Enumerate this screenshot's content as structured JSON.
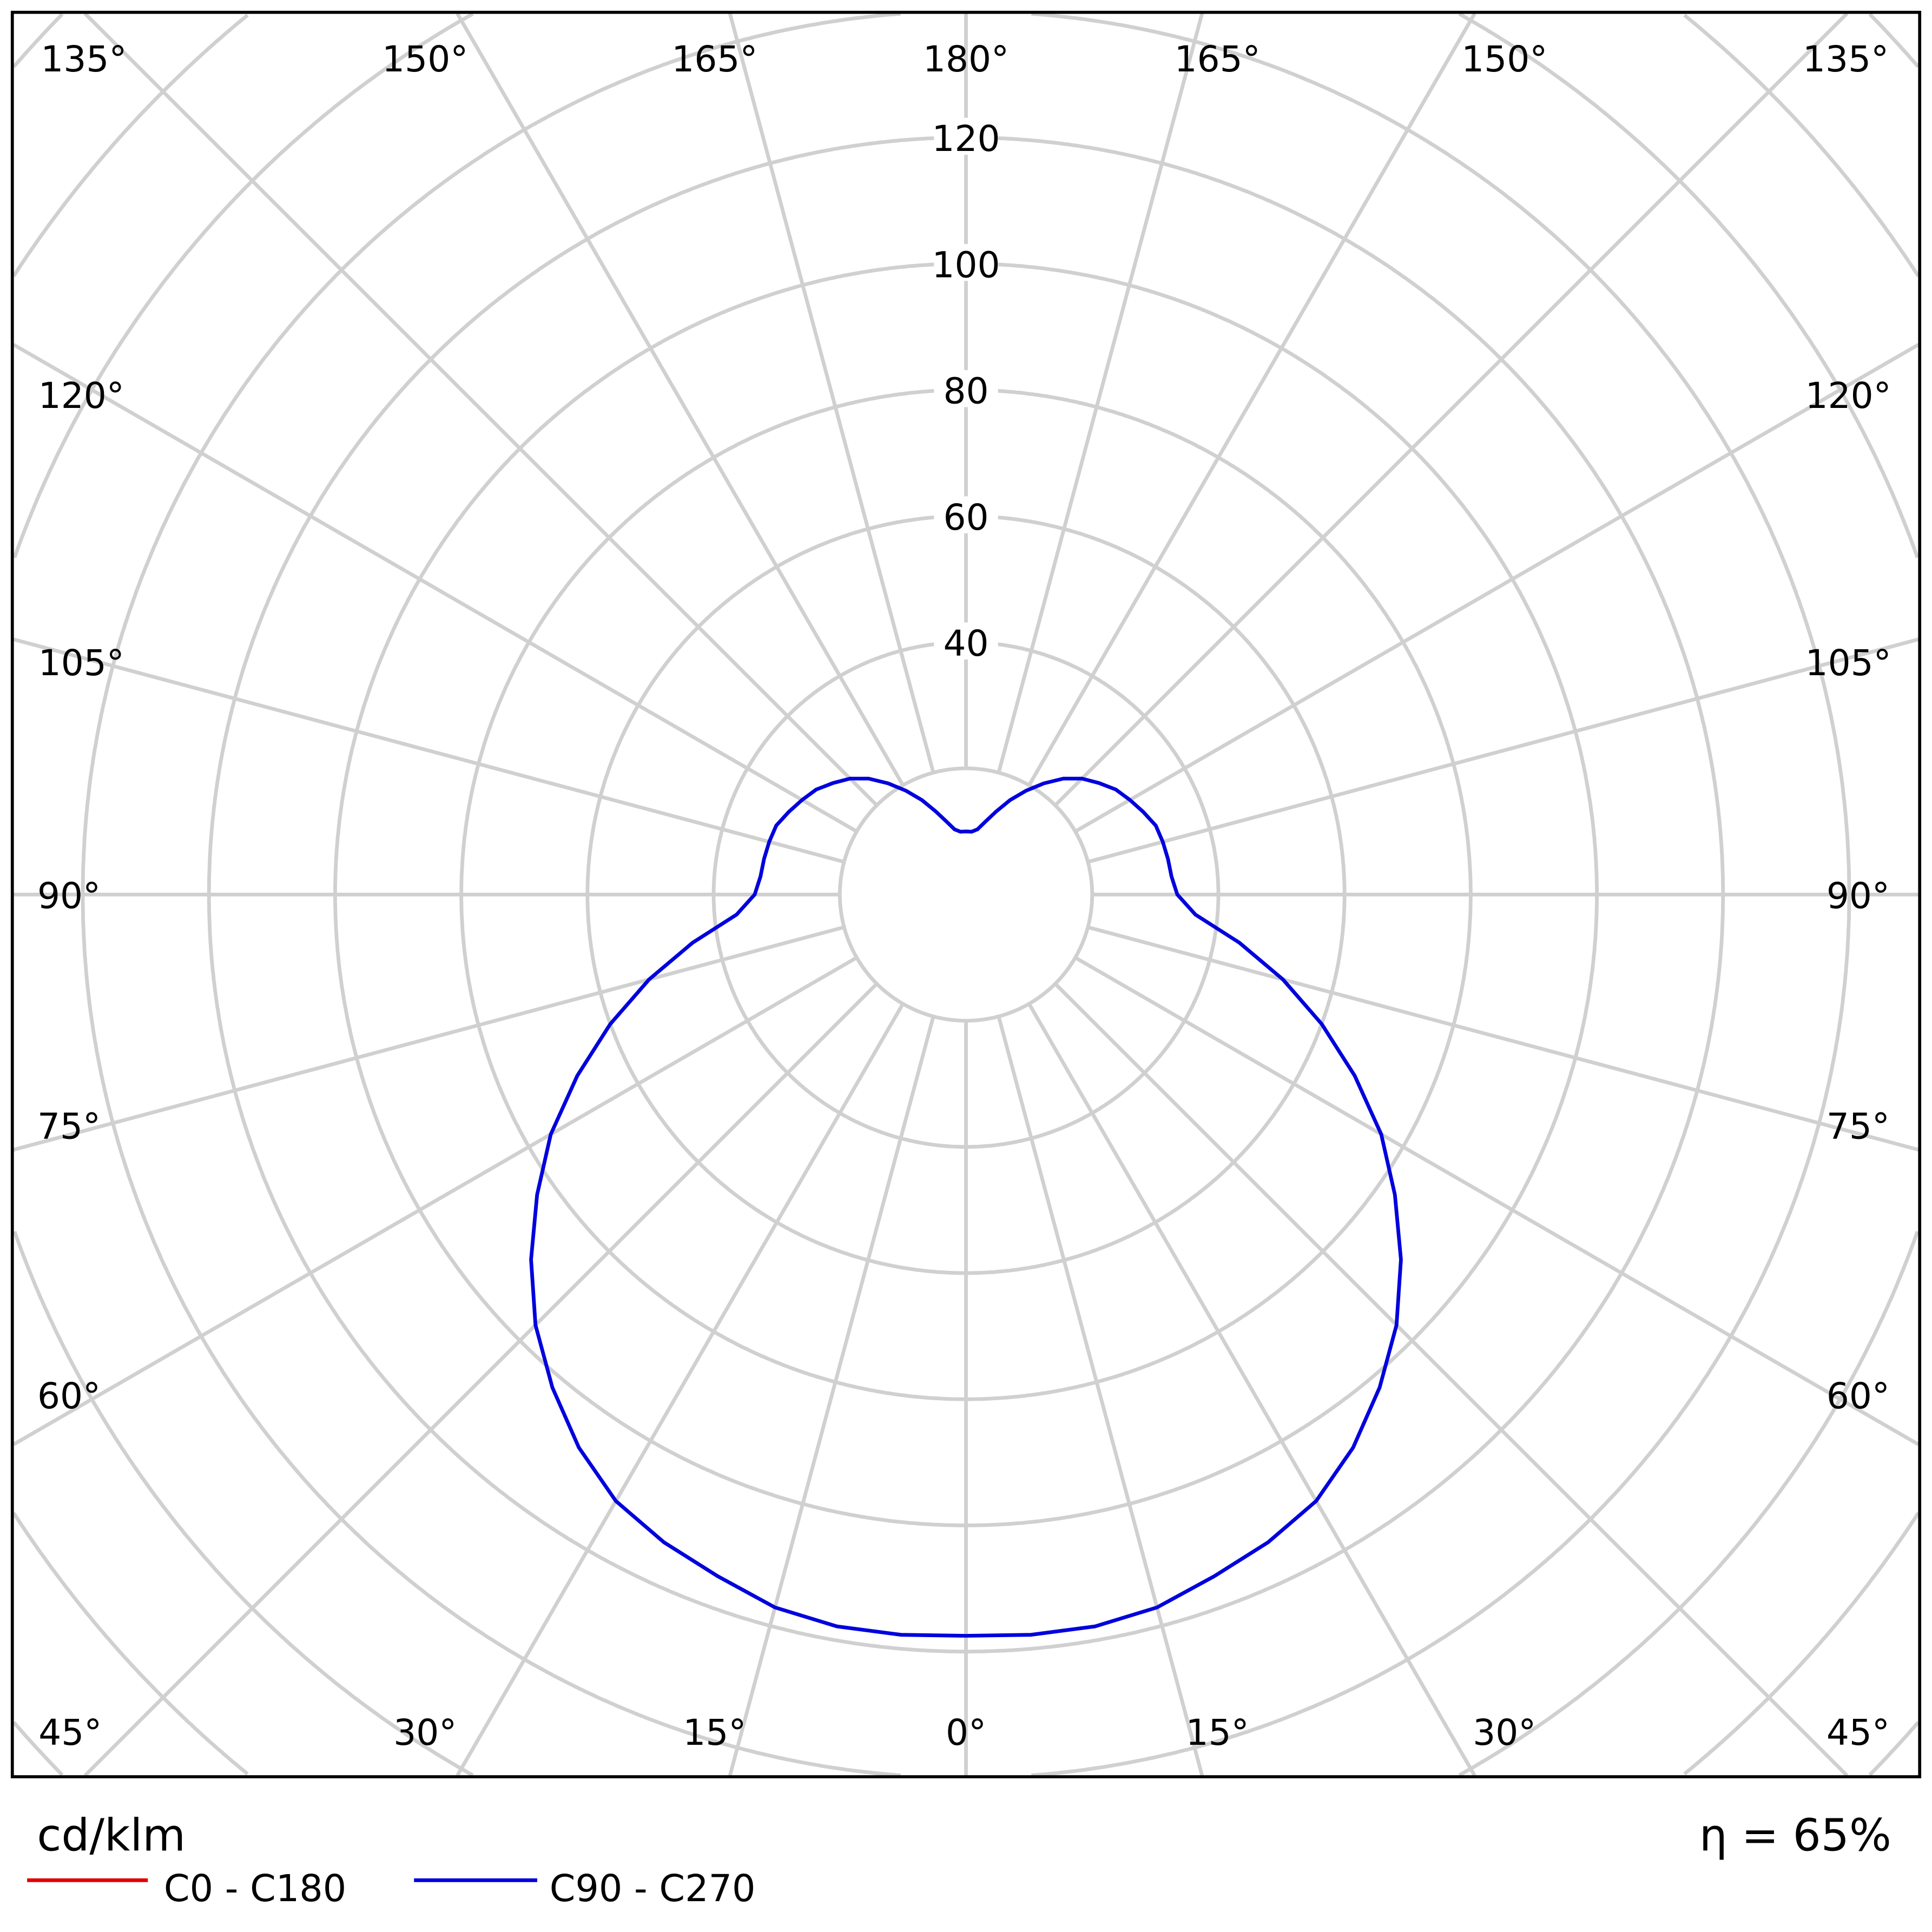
{
  "chart_data": {
    "type": "polar",
    "unit_label": "cd/klm",
    "efficiency_label": "η = 65%",
    "radial_ticks": [
      40,
      60,
      80,
      100,
      120
    ],
    "radial_grid_step": 20,
    "angle_tick_step": 15,
    "angle_labels": {
      "bottom": [
        "45°",
        "30°",
        "15°",
        "0°",
        "15°",
        "30°",
        "45°"
      ],
      "top": [
        "135°",
        "150°",
        "165°",
        "180°",
        "165°",
        "150°",
        "135°"
      ],
      "left": [
        "120°",
        "105°",
        "90°",
        "75°",
        "60°"
      ],
      "right": [
        "120°",
        "105°",
        "90°",
        "75°",
        "60°"
      ]
    },
    "grid": true,
    "legend_placement": "bottom-left",
    "series": [
      {
        "name": "C0 - C180",
        "color": "#e00000"
      },
      {
        "name": "C90 - C270",
        "color": "#0000dd",
        "gamma": [
          0,
          5,
          10,
          15,
          20,
          25,
          30,
          35,
          40,
          45,
          50,
          55,
          60,
          65,
          70,
          75,
          80,
          85,
          90,
          95,
          100,
          105,
          110,
          115,
          120,
          125,
          130,
          135,
          140,
          145,
          150,
          155,
          160,
          165,
          170,
          175,
          180
        ],
        "values": [
          117.5,
          117.8,
          117.8,
          117,
          115,
          113.3,
          111,
          107,
          102,
          96.5,
          90,
          83,
          76,
          68,
          60,
          52,
          44,
          36.5,
          33.5,
          32.7,
          32.5,
          32.3,
          32,
          31,
          30,
          29,
          27.5,
          26,
          24,
          21.5,
          19,
          16.5,
          14,
          12,
          10.5,
          10,
          10
        ]
      }
    ]
  }
}
